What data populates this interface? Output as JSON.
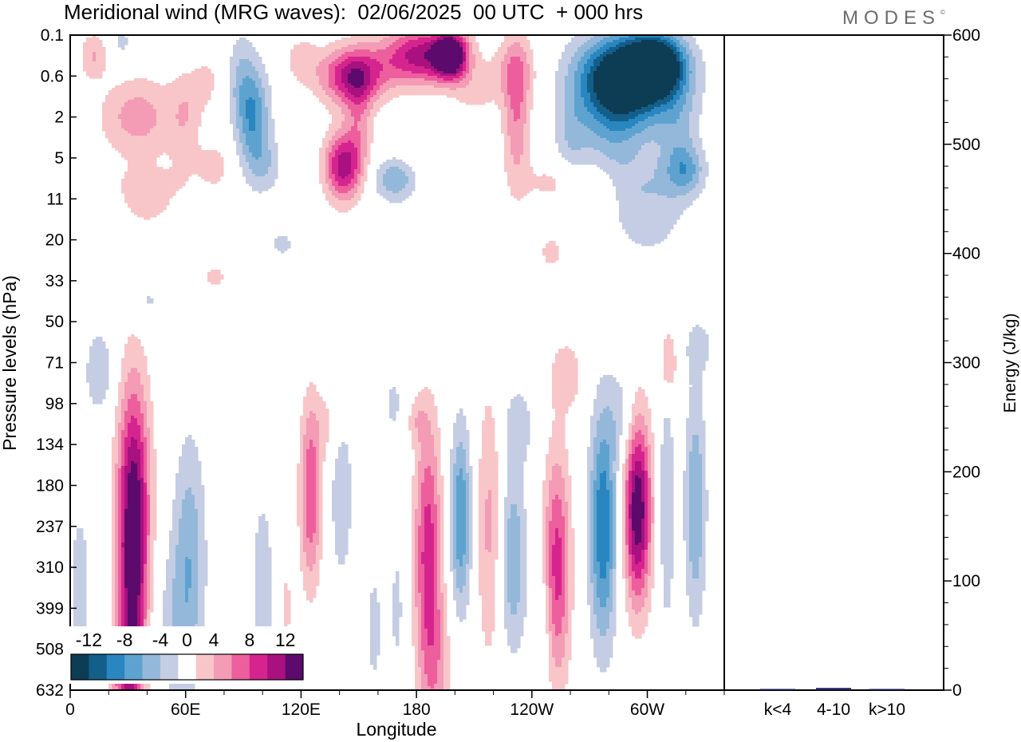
{
  "title": "Meridional wind (MRG waves):  02/06/2025  00 UTC  + 000 hrs",
  "logo": "MODES",
  "logo_mark": "©",
  "chart_data": [
    {
      "type": "heatmap",
      "xlabel": "Longitude",
      "ylabel": "Pressure levels (hPa)",
      "x_ticks": [
        "0",
        "60E",
        "120E",
        "180",
        "120W",
        "60W"
      ],
      "y_ticks": [
        "0.1",
        "0.6",
        "2",
        "5",
        "11",
        "20",
        "33",
        "50",
        "71",
        "98",
        "134",
        "180",
        "237",
        "310",
        "399",
        "508",
        "632"
      ],
      "xlim": [
        0,
        340
      ],
      "colorbar": {
        "labels": [
          "-12",
          "-8",
          "-4",
          "0",
          "4",
          "8",
          "12"
        ],
        "levels": [
          -14,
          -12,
          -10,
          -8,
          -6,
          -4,
          -2,
          2,
          4,
          6,
          8,
          10,
          12,
          14
        ],
        "colors": [
          "#0d3c55",
          "#135f8a",
          "#2a86c0",
          "#5ea3cf",
          "#94b8da",
          "#c4cde3",
          "#ffffff",
          "#f8c6c8",
          "#f49bb6",
          "#ec5f9c",
          "#d6248f",
          "#a8117f",
          "#5c0a6b"
        ]
      },
      "blobs": [
        {
          "lon": 33,
          "lev": 11.5,
          "sx": 6,
          "sy": 2.2,
          "amp": 13
        },
        {
          "lon": 32,
          "lev": 14.5,
          "sx": 5,
          "sy": 1.8,
          "amp": 7
        },
        {
          "lon": 28,
          "lev": 15.8,
          "sx": 6,
          "sy": 0.8,
          "amp": 5
        },
        {
          "lon": 62,
          "lev": 12.5,
          "sx": 6,
          "sy": 2.0,
          "amp": -5
        },
        {
          "lon": 55,
          "lev": 14.5,
          "sx": 8,
          "sy": 1.5,
          "amp": -3
        },
        {
          "lon": 15,
          "lev": 8.2,
          "sx": 5,
          "sy": 0.7,
          "amp": -4
        },
        {
          "lon": 5,
          "lev": 13.5,
          "sx": 6,
          "sy": 2.2,
          "amp": -2.5
        },
        {
          "lon": 100,
          "lev": 13.5,
          "sx": 5,
          "sy": 2.0,
          "amp": -3
        },
        {
          "lon": 125,
          "lev": 11.2,
          "sx": 4,
          "sy": 1.6,
          "amp": 8
        },
        {
          "lon": 141,
          "lev": 11.2,
          "sx": 4,
          "sy": 1.5,
          "amp": -4
        },
        {
          "lon": 158,
          "lev": 14.5,
          "sx": 4,
          "sy": 1.5,
          "amp": -2.5
        },
        {
          "lon": 186,
          "lev": 12.5,
          "sx": 5,
          "sy": 2.2,
          "amp": 9
        },
        {
          "lon": 190,
          "lev": 15.5,
          "sx": 6,
          "sy": 1.4,
          "amp": 4
        },
        {
          "lon": 203,
          "lev": 11.8,
          "sx": 4,
          "sy": 1.6,
          "amp": -8
        },
        {
          "lon": 218,
          "lev": 12.0,
          "sx": 5,
          "sy": 2.4,
          "amp": 4.5
        },
        {
          "lon": 230,
          "lev": 12.8,
          "sx": 5,
          "sy": 1.6,
          "amp": -6
        },
        {
          "lon": 233,
          "lev": 9.5,
          "sx": 6,
          "sy": 0.7,
          "amp": -3
        },
        {
          "lon": 245,
          "lev": 14.5,
          "sx": 4,
          "sy": 1.2,
          "amp": -2.5
        },
        {
          "lon": 253,
          "lev": 13.0,
          "sx": 5,
          "sy": 2.0,
          "amp": 9
        },
        {
          "lon": 258,
          "lev": 8.3,
          "sx": 6,
          "sy": 0.6,
          "amp": 3.5
        },
        {
          "lon": 277,
          "lev": 12.0,
          "sx": 5,
          "sy": 2.0,
          "amp": -10
        },
        {
          "lon": 287,
          "lev": 9.3,
          "sx": 5,
          "sy": 0.8,
          "amp": -3
        },
        {
          "lon": 295,
          "lev": 11.6,
          "sx": 5,
          "sy": 1.6,
          "amp": 14
        },
        {
          "lon": 310,
          "lev": 11.5,
          "sx": 3,
          "sy": 2.2,
          "amp": -4
        },
        {
          "lon": 325,
          "lev": 11.5,
          "sx": 4,
          "sy": 2.0,
          "amp": -6
        },
        {
          "lon": 311,
          "lev": 8.0,
          "sx": 3,
          "sy": 0.6,
          "amp": 5
        },
        {
          "lon": 327,
          "lev": 7.6,
          "sx": 6,
          "sy": 0.5,
          "amp": -2.5
        },
        {
          "lon": 135,
          "lev": 9.5,
          "sx": 5,
          "sy": 0.6,
          "amp": 2.5
        },
        {
          "lon": 168,
          "lev": 9.0,
          "sx": 4,
          "sy": 0.6,
          "amp": -2.5
        },
        {
          "lon": 180,
          "lev": 9.4,
          "sx": 4,
          "sy": 0.4,
          "amp": 2.5
        },
        {
          "lon": 112,
          "lev": 14.0,
          "sx": 3,
          "sy": 1.2,
          "amp": 2.5
        },
        {
          "lon": 170,
          "lev": 14.0,
          "sx": 3,
          "sy": 1.4,
          "amp": -2.5
        },
        {
          "lon": 12,
          "lev": 0.5,
          "sx": 5,
          "sy": 0.4,
          "amp": 4
        },
        {
          "lon": 35,
          "lev": 2.0,
          "sx": 14,
          "sy": 0.7,
          "amp": 5
        },
        {
          "lon": 40,
          "lev": 3.7,
          "sx": 15,
          "sy": 0.4,
          "amp": 2.5
        },
        {
          "lon": 60,
          "lev": 2.0,
          "sx": 6,
          "sy": 1.0,
          "amp": 3
        },
        {
          "lon": 70,
          "lev": 1.1,
          "sx": 6,
          "sy": 0.5,
          "amp": 2.5
        },
        {
          "lon": 95,
          "lev": 2.0,
          "sx": 6,
          "sy": 0.9,
          "amp": -8
        },
        {
          "lon": 88,
          "lev": 1.0,
          "sx": 5,
          "sy": 0.8,
          "amp": -3
        },
        {
          "lon": 102,
          "lev": 3.2,
          "sx": 6,
          "sy": 0.5,
          "amp": -3
        },
        {
          "lon": 62,
          "lev": 0.3,
          "sx": 5,
          "sy": 0.4,
          "amp": -2.5
        },
        {
          "lon": 27,
          "lev": 0.2,
          "sx": 4,
          "sy": 0.4,
          "amp": -2.5
        },
        {
          "lon": 75,
          "lev": 3.2,
          "sx": 6,
          "sy": 0.4,
          "amp": 3
        },
        {
          "lon": 147,
          "lev": 1.0,
          "sx": 12,
          "sy": 0.5,
          "amp": 11
        },
        {
          "lon": 142,
          "lev": 3.2,
          "sx": 7,
          "sy": 0.6,
          "amp": 11
        },
        {
          "lon": 150,
          "lev": 2.0,
          "sx": 5,
          "sy": 0.8,
          "amp": 4
        },
        {
          "lon": 120,
          "lev": 0.6,
          "sx": 6,
          "sy": 0.4,
          "amp": 3
        },
        {
          "lon": 182,
          "lev": 0.5,
          "sx": 14,
          "sy": 0.5,
          "amp": 11
        },
        {
          "lon": 198,
          "lev": 0.5,
          "sx": 6,
          "sy": 0.4,
          "amp": 14
        },
        {
          "lon": 170,
          "lev": 3.5,
          "sx": 9,
          "sy": 0.4,
          "amp": -7
        },
        {
          "lon": 200,
          "lev": 3.0,
          "sx": 7,
          "sy": 0.5,
          "amp": -2.5
        },
        {
          "lon": 232,
          "lev": 1.8,
          "sx": 5,
          "sy": 1.4,
          "amp": 6
        },
        {
          "lon": 210,
          "lev": 1.4,
          "sx": 8,
          "sy": 0.4,
          "amp": 2.5
        },
        {
          "lon": 230,
          "lev": 0.9,
          "sx": 10,
          "sy": 0.5,
          "amp": 3
        },
        {
          "lon": 185,
          "lev": 3.3,
          "sx": 16,
          "sy": 0.5,
          "amp": 2.5
        },
        {
          "lon": 290,
          "lev": 1.0,
          "sx": 18,
          "sy": 0.7,
          "amp": -15
        },
        {
          "lon": 305,
          "lev": 0.7,
          "sx": 10,
          "sy": 0.5,
          "amp": -12
        },
        {
          "lon": 283,
          "lev": 2.0,
          "sx": 14,
          "sy": 1.0,
          "amp": -6
        },
        {
          "lon": 316,
          "lev": 2.4,
          "sx": 8,
          "sy": 0.9,
          "amp": -4
        },
        {
          "lon": 320,
          "lev": 3.3,
          "sx": 7,
          "sy": 0.4,
          "amp": -5
        },
        {
          "lon": 300,
          "lev": 3.7,
          "sx": 15,
          "sy": 0.5,
          "amp": -2.5
        },
        {
          "lon": 260,
          "lev": 2.5,
          "sx": 6,
          "sy": 0.7,
          "amp": -3
        },
        {
          "lon": 250,
          "lev": 3.6,
          "sx": 10,
          "sy": 0.4,
          "amp": 2.5
        },
        {
          "lon": 272,
          "lev": 3.8,
          "sx": 8,
          "sy": 0.4,
          "amp": 2.5
        },
        {
          "lon": 110,
          "lev": 5.1,
          "sx": 6,
          "sy": 0.3,
          "amp": -2.5
        },
        {
          "lon": 250,
          "lev": 5.3,
          "sx": 6,
          "sy": 0.4,
          "amp": 2.5
        },
        {
          "lon": 300,
          "lev": 4.7,
          "sx": 14,
          "sy": 0.6,
          "amp": -2.5
        },
        {
          "lon": 75,
          "lev": 5.9,
          "sx": 6,
          "sy": 0.3,
          "amp": 2.5
        },
        {
          "lon": 40,
          "lev": 6.5,
          "sx": 6,
          "sy": 0.4,
          "amp": -2.5
        },
        {
          "lon": 40,
          "lev": 4.2,
          "sx": 7,
          "sy": 0.3,
          "amp": 2.5
        }
      ]
    },
    {
      "type": "bar",
      "categories": [
        "k<4",
        "4-10",
        "k>10"
      ],
      "values": [
        0.5,
        2,
        0.5
      ],
      "ylabel": "Energy (J/kg)",
      "ylim": [
        0,
        600
      ],
      "y_ticks": [
        "0",
        "100",
        "200",
        "300",
        "400",
        "500",
        "600"
      ],
      "bar_color": "#1a1f5c"
    }
  ]
}
